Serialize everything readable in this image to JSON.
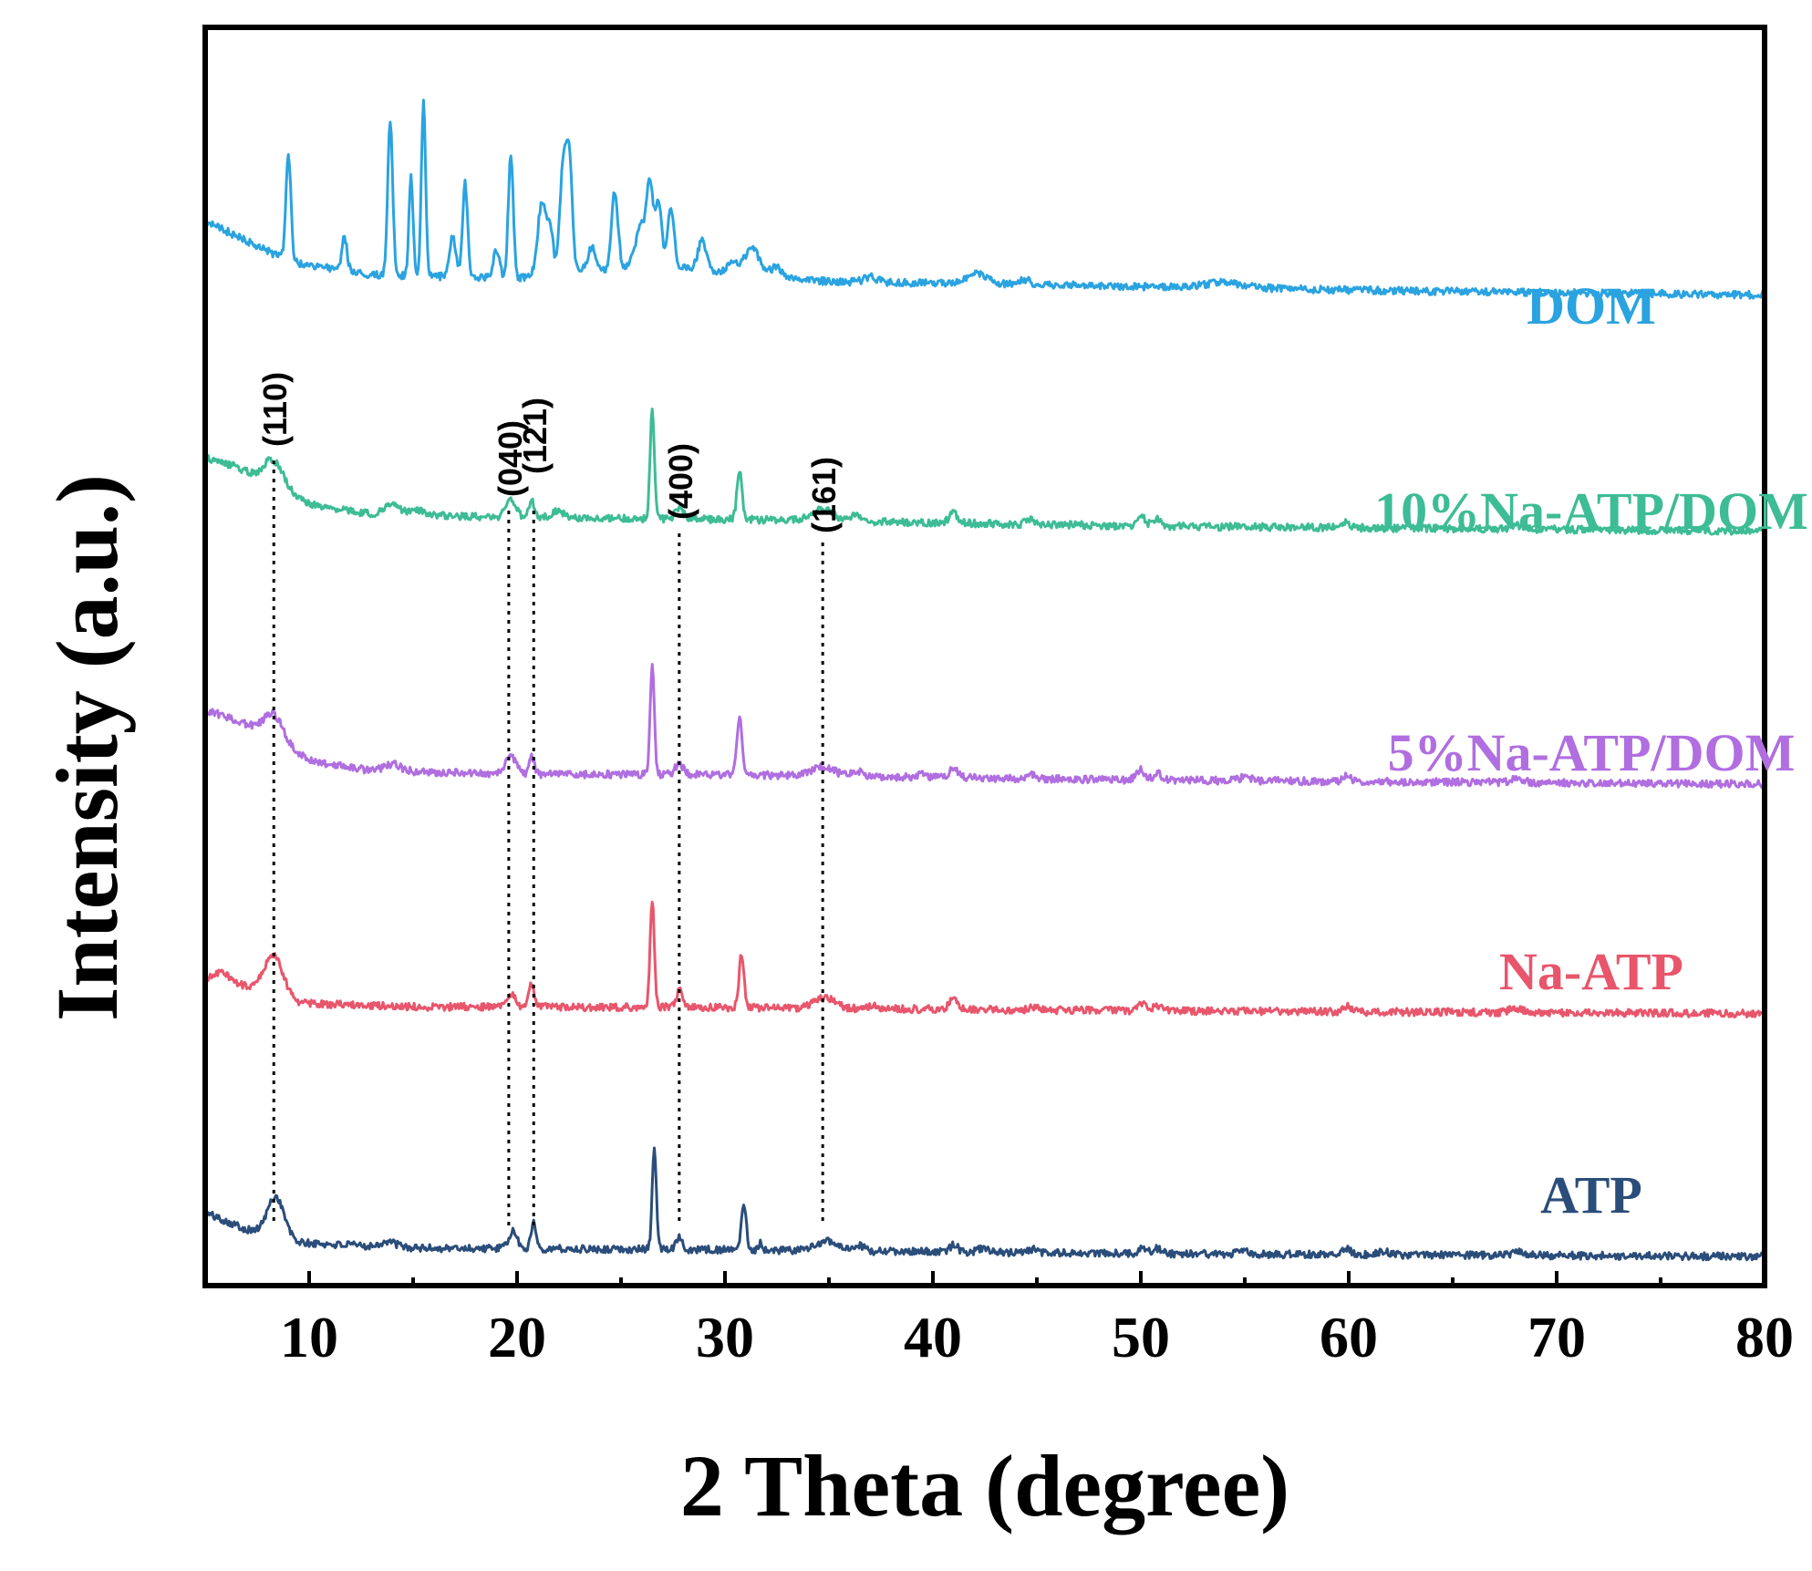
{
  "chart_data": {
    "type": "line",
    "title": "",
    "xlabel": "2 Theta (degree)",
    "ylabel": "Intensity (a.u.)",
    "xlim": [
      5,
      80
    ],
    "xticks": [
      10,
      20,
      30,
      40,
      50,
      60,
      70,
      80
    ],
    "tick_labels": [
      "10",
      "20",
      "30",
      "40",
      "50",
      "60",
      "70",
      "80"
    ],
    "y_units": "a.u. (stacked, offset traces)",
    "series": [
      {
        "name": "ATP",
        "color": "#2a4d7a",
        "offset": 0.0,
        "baseline": [
          [
            5,
            0.13
          ],
          [
            7,
            0.08
          ],
          [
            9.5,
            0.04
          ],
          [
            15,
            0.025
          ],
          [
            30,
            0.02
          ],
          [
            50,
            0.008
          ],
          [
            80,
            0.0
          ]
        ],
        "peaks": [
          [
            8.4,
            0.12,
            0.4
          ],
          [
            13.8,
            0.015,
            0.4
          ],
          [
            19.8,
            0.05,
            0.2
          ],
          [
            20.8,
            0.08,
            0.12
          ],
          [
            26.6,
            0.3,
            0.1
          ],
          [
            27.8,
            0.04,
            0.15
          ],
          [
            30.9,
            0.14,
            0.12
          ],
          [
            31.7,
            0.02,
            0.1
          ],
          [
            34.9,
            0.03,
            0.5
          ],
          [
            36.5,
            0.015,
            0.2
          ],
          [
            41.0,
            0.02,
            0.2
          ],
          [
            42.4,
            0.012,
            0.2
          ],
          [
            44.8,
            0.01,
            0.2
          ],
          [
            50.1,
            0.02,
            0.2
          ],
          [
            50.8,
            0.015,
            0.2
          ],
          [
            55.0,
            0.008,
            0.3
          ],
          [
            59.9,
            0.02,
            0.2
          ],
          [
            61.6,
            0.01,
            0.3
          ],
          [
            68.2,
            0.012,
            0.3
          ]
        ]
      },
      {
        "name": "Na-ATP",
        "color": "#e8566c",
        "offset": 0.72,
        "baseline": [
          [
            5,
            0.1
          ],
          [
            7,
            0.08
          ],
          [
            9.5,
            0.03
          ],
          [
            15,
            0.02
          ],
          [
            30,
            0.018
          ],
          [
            50,
            0.008
          ],
          [
            80,
            0.0
          ]
        ],
        "peaks": [
          [
            5.8,
            0.03,
            0.4
          ],
          [
            8.3,
            0.12,
            0.45
          ],
          [
            19.7,
            0.04,
            0.2
          ],
          [
            20.7,
            0.07,
            0.12
          ],
          [
            26.5,
            0.32,
            0.1
          ],
          [
            27.8,
            0.05,
            0.15
          ],
          [
            30.8,
            0.16,
            0.12
          ],
          [
            34.8,
            0.03,
            0.5
          ],
          [
            37.2,
            0.012,
            0.2
          ],
          [
            41.0,
            0.03,
            0.2
          ],
          [
            44.8,
            0.01,
            0.2
          ],
          [
            50.0,
            0.025,
            0.2
          ],
          [
            50.8,
            0.015,
            0.2
          ],
          [
            59.9,
            0.018,
            0.2
          ],
          [
            68.0,
            0.012,
            0.3
          ]
        ]
      },
      {
        "name": "5%Na-ATP/DOM",
        "color": "#b06ee0",
        "offset": 1.4,
        "baseline": [
          [
            5,
            0.22
          ],
          [
            6.5,
            0.19
          ],
          [
            8,
            0.15
          ],
          [
            10,
            0.07
          ],
          [
            13,
            0.04
          ],
          [
            20,
            0.03
          ],
          [
            30,
            0.028
          ],
          [
            40,
            0.02
          ],
          [
            50,
            0.012
          ],
          [
            80,
            0.0
          ]
        ],
        "peaks": [
          [
            8.3,
            0.07,
            0.45
          ],
          [
            14.0,
            0.02,
            0.4
          ],
          [
            19.7,
            0.05,
            0.25
          ],
          [
            20.7,
            0.05,
            0.12
          ],
          [
            26.5,
            0.33,
            0.1
          ],
          [
            27.8,
            0.03,
            0.2
          ],
          [
            30.7,
            0.17,
            0.12
          ],
          [
            34.7,
            0.03,
            0.5
          ],
          [
            36.3,
            0.015,
            0.3
          ],
          [
            39.5,
            0.012,
            0.2
          ],
          [
            41.0,
            0.03,
            0.2
          ],
          [
            44.7,
            0.015,
            0.2
          ],
          [
            50.0,
            0.03,
            0.2
          ],
          [
            50.8,
            0.02,
            0.2
          ],
          [
            55.0,
            0.01,
            0.3
          ],
          [
            59.9,
            0.015,
            0.2
          ],
          [
            68.1,
            0.012,
            0.3
          ]
        ]
      },
      {
        "name": "10%Na-ATP/DOM",
        "color": "#3dbc95",
        "offset": 2.15,
        "baseline": [
          [
            5,
            0.22
          ],
          [
            6.5,
            0.19
          ],
          [
            8,
            0.15
          ],
          [
            10,
            0.08
          ],
          [
            13,
            0.05
          ],
          [
            20,
            0.04
          ],
          [
            30,
            0.035
          ],
          [
            40,
            0.025
          ],
          [
            50,
            0.015
          ],
          [
            80,
            0.0
          ]
        ],
        "peaks": [
          [
            8.3,
            0.07,
            0.45
          ],
          [
            14.0,
            0.03,
            0.4
          ],
          [
            15.3,
            0.015,
            0.3
          ],
          [
            19.7,
            0.05,
            0.25
          ],
          [
            20.7,
            0.05,
            0.12
          ],
          [
            22.0,
            0.02,
            0.3
          ],
          [
            26.5,
            0.33,
            0.1
          ],
          [
            27.8,
            0.03,
            0.2
          ],
          [
            30.7,
            0.15,
            0.12
          ],
          [
            34.7,
            0.04,
            0.5
          ],
          [
            36.3,
            0.015,
            0.3
          ],
          [
            41.0,
            0.03,
            0.2
          ],
          [
            44.7,
            0.015,
            0.2
          ],
          [
            50.0,
            0.03,
            0.2
          ],
          [
            50.8,
            0.02,
            0.2
          ],
          [
            59.8,
            0.015,
            0.2
          ],
          [
            68.1,
            0.012,
            0.3
          ]
        ]
      },
      {
        "name": "DOM",
        "color": "#2aa3e0",
        "offset": 2.85,
        "baseline": [
          [
            5,
            0.22
          ],
          [
            7,
            0.16
          ],
          [
            9,
            0.1
          ],
          [
            13,
            0.06
          ],
          [
            20,
            0.05
          ],
          [
            25,
            0.08
          ],
          [
            27,
            0.09
          ],
          [
            30,
            0.06
          ],
          [
            35,
            0.04
          ],
          [
            45,
            0.03
          ],
          [
            55,
            0.02
          ],
          [
            65,
            0.01
          ],
          [
            80,
            0.0
          ]
        ],
        "peaks": [
          [
            9.0,
            0.32,
            0.12
          ],
          [
            11.7,
            0.1,
            0.12
          ],
          [
            13.9,
            0.45,
            0.12
          ],
          [
            14.9,
            0.29,
            0.1
          ],
          [
            15.5,
            0.52,
            0.1
          ],
          [
            16.9,
            0.12,
            0.15
          ],
          [
            17.5,
            0.28,
            0.12
          ],
          [
            19.0,
            0.08,
            0.15
          ],
          [
            19.7,
            0.36,
            0.12
          ],
          [
            21.2,
            0.22,
            0.2
          ],
          [
            21.6,
            0.12,
            0.15
          ],
          [
            22.2,
            0.3,
            0.15
          ],
          [
            22.5,
            0.35,
            0.15
          ],
          [
            23.6,
            0.07,
            0.2
          ],
          [
            24.7,
            0.23,
            0.15
          ],
          [
            26.0,
            0.12,
            0.3
          ],
          [
            26.4,
            0.2,
            0.15
          ],
          [
            26.8,
            0.18,
            0.15
          ],
          [
            27.4,
            0.17,
            0.15
          ],
          [
            28.9,
            0.09,
            0.2
          ],
          [
            30.3,
            0.03,
            0.3
          ],
          [
            31.3,
            0.08,
            0.4
          ],
          [
            32.5,
            0.03,
            0.3
          ],
          [
            37.0,
            0.015,
            0.3
          ],
          [
            42.2,
            0.03,
            0.5
          ],
          [
            44.4,
            0.015,
            0.3
          ],
          [
            54.0,
            0.015,
            1.0
          ]
        ]
      }
    ],
    "annotations": [
      {
        "label": "(110)",
        "x": 8.3
      },
      {
        "label": "(040)",
        "x": 19.6
      },
      {
        "label": "(121)",
        "x": 20.8
      },
      {
        "label": "(400)",
        "x": 27.8
      },
      {
        "label": "(161)",
        "x": 34.7
      }
    ]
  }
}
